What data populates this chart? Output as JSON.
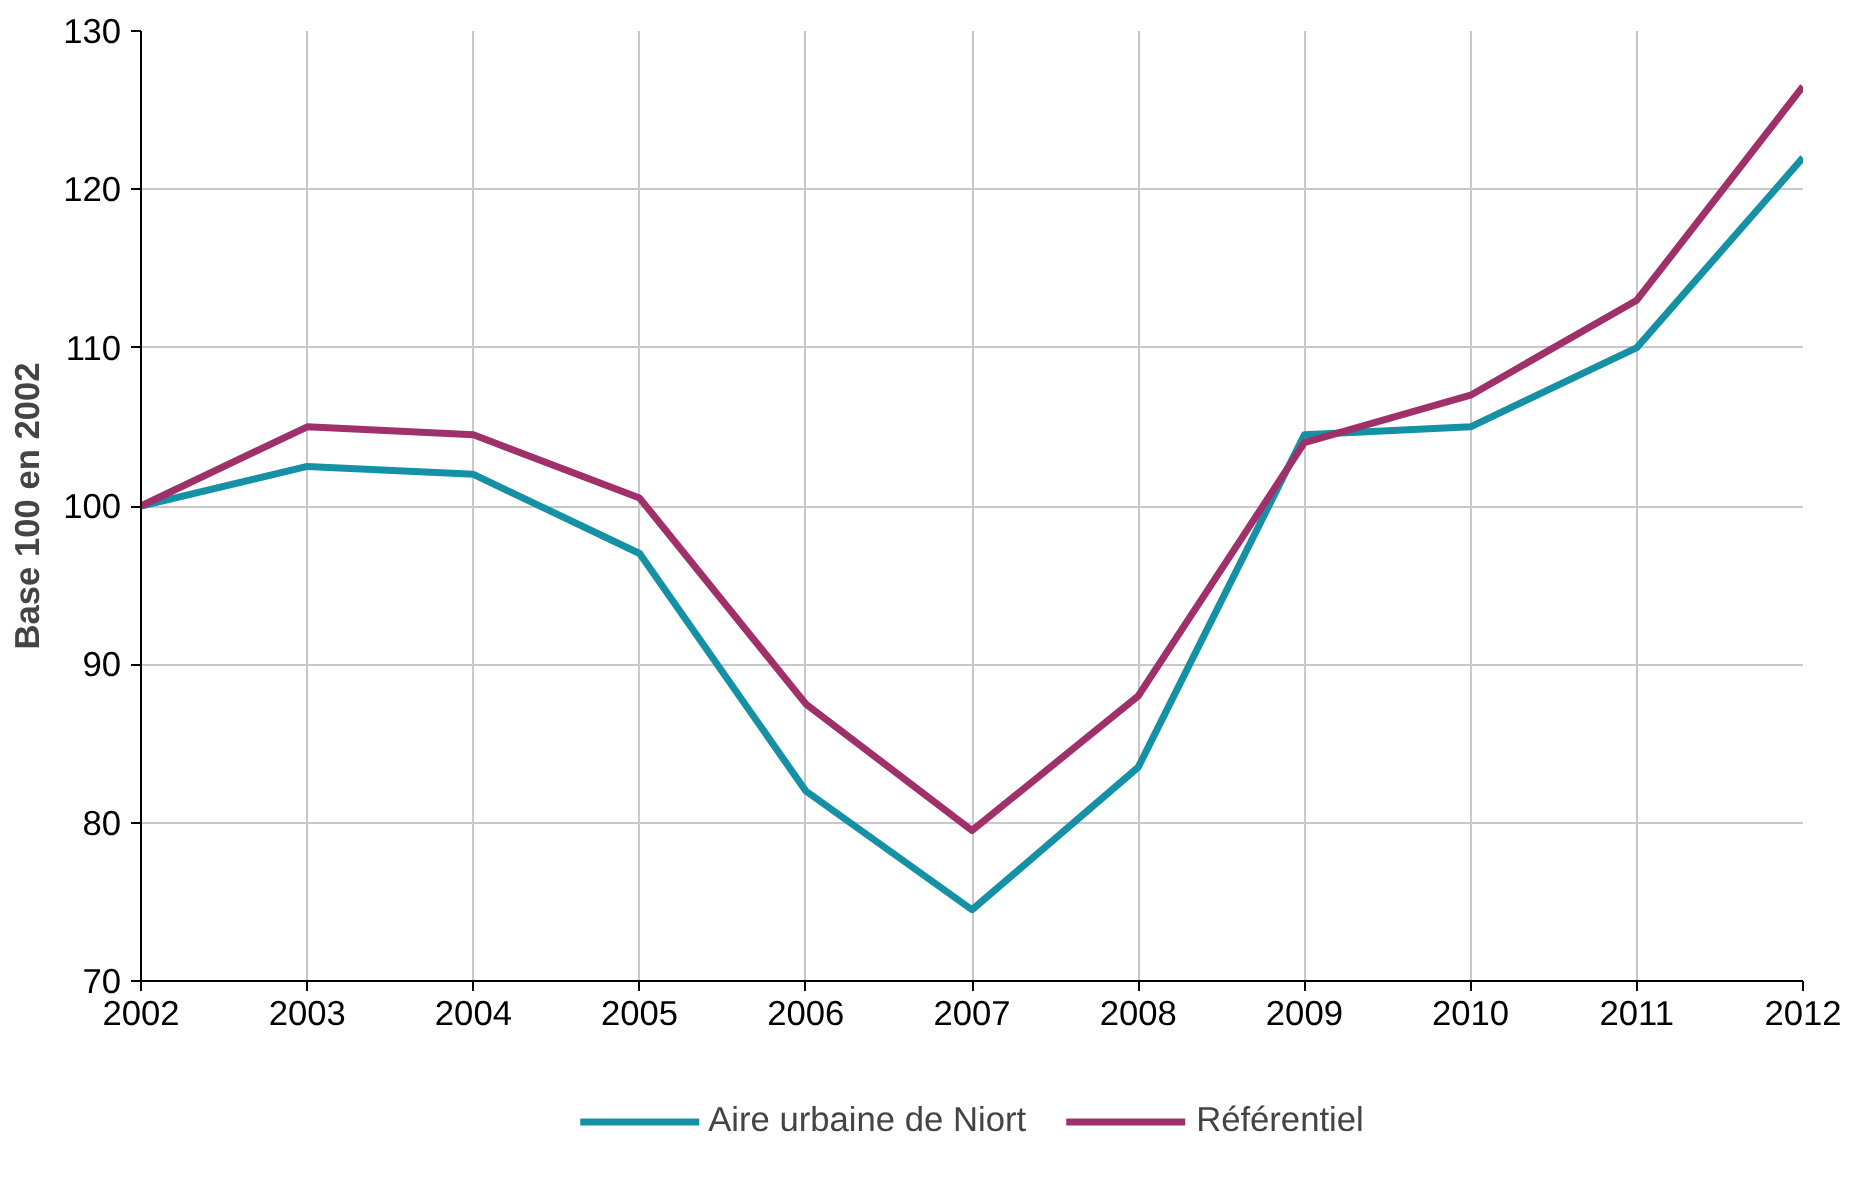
{
  "chart_data": {
    "type": "line",
    "ylabel": "Base 100 en 2002",
    "x": [
      2002,
      2003,
      2004,
      2005,
      2006,
      2007,
      2008,
      2009,
      2010,
      2011,
      2012
    ],
    "series": [
      {
        "name": "Aire urbaine de Niort",
        "color": "#1591a5",
        "values": [
          100,
          102.5,
          102,
          97,
          82,
          74.5,
          83.5,
          104.5,
          105,
          110,
          122
        ]
      },
      {
        "name": "Référentiel",
        "color": "#a0306a",
        "values": [
          100,
          105,
          104.5,
          100.5,
          87.5,
          79.5,
          88,
          104,
          107,
          113,
          126.5
        ]
      }
    ],
    "xlim": [
      2002,
      2012
    ],
    "xticks": [
      2002,
      2003,
      2004,
      2005,
      2006,
      2007,
      2008,
      2009,
      2010,
      2011,
      2012
    ],
    "ylim": [
      70,
      130
    ],
    "yticks": [
      70,
      80,
      90,
      100,
      110,
      120,
      130
    ],
    "grid": true,
    "legend": "bottom",
    "marker": "none",
    "line_style": "solid"
  }
}
